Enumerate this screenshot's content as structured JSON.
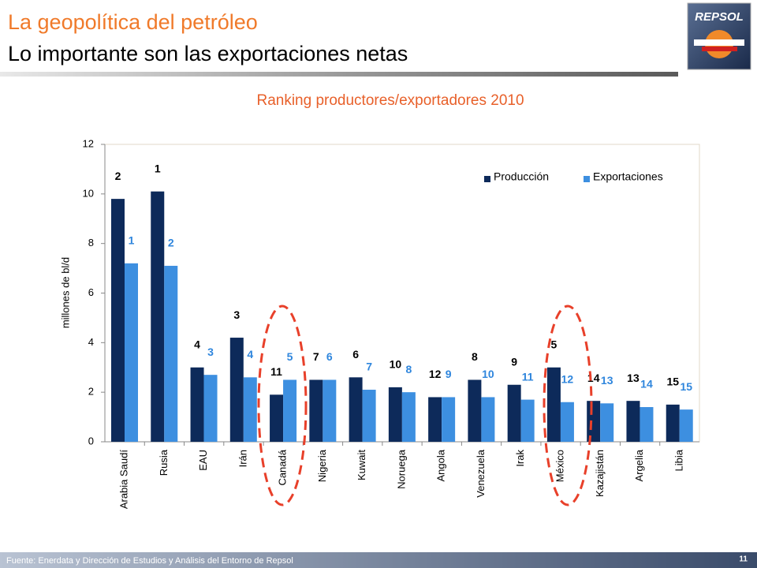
{
  "header": {
    "title": "La geopolítica del petróleo",
    "subtitle": "Lo importante son las exportaciones netas",
    "logo": "REPSOL"
  },
  "footer": {
    "source": "Fuente: Enerdata y Dirección de Estudios y Análisis del Entorno de Repsol",
    "page": "11"
  },
  "chart_data": {
    "type": "bar",
    "title": "Ranking productores/exportadores 2010",
    "y_label": "millones de bl/d",
    "categories": [
      "Arabia Saudí",
      "Rusia",
      "EAU",
      "Irán",
      "Canadá",
      "Nigeria",
      "Kuwait",
      "Noruega",
      "Angola",
      "Venezuela",
      "Irak",
      "México",
      "Kazajistán",
      "Argelia",
      "Libia"
    ],
    "series": [
      {
        "name": "Producción",
        "color": "#0d2a5a",
        "values": [
          9.8,
          10.1,
          3.0,
          4.2,
          1.9,
          2.5,
          2.6,
          2.2,
          1.8,
          2.5,
          2.3,
          3.0,
          1.65,
          1.65,
          1.5
        ],
        "ranks": [
          2,
          1,
          4,
          3,
          11,
          7,
          6,
          10,
          12,
          8,
          9,
          5,
          14,
          13,
          15
        ],
        "rank_color": "#000000"
      },
      {
        "name": "Exportaciones",
        "color": "#3d8fe0",
        "values": [
          7.2,
          7.1,
          2.7,
          2.6,
          2.5,
          2.5,
          2.1,
          2.0,
          1.8,
          1.8,
          1.7,
          1.6,
          1.55,
          1.4,
          1.3
        ],
        "ranks": [
          1,
          2,
          3,
          4,
          5,
          6,
          7,
          8,
          9,
          10,
          11,
          12,
          13,
          14,
          15
        ],
        "rank_color": "#2f86dd"
      }
    ],
    "ylim": [
      0,
      12
    ],
    "yticks": [
      0,
      2,
      4,
      6,
      8,
      10,
      12
    ],
    "grid": false,
    "legend": "upper right"
  }
}
